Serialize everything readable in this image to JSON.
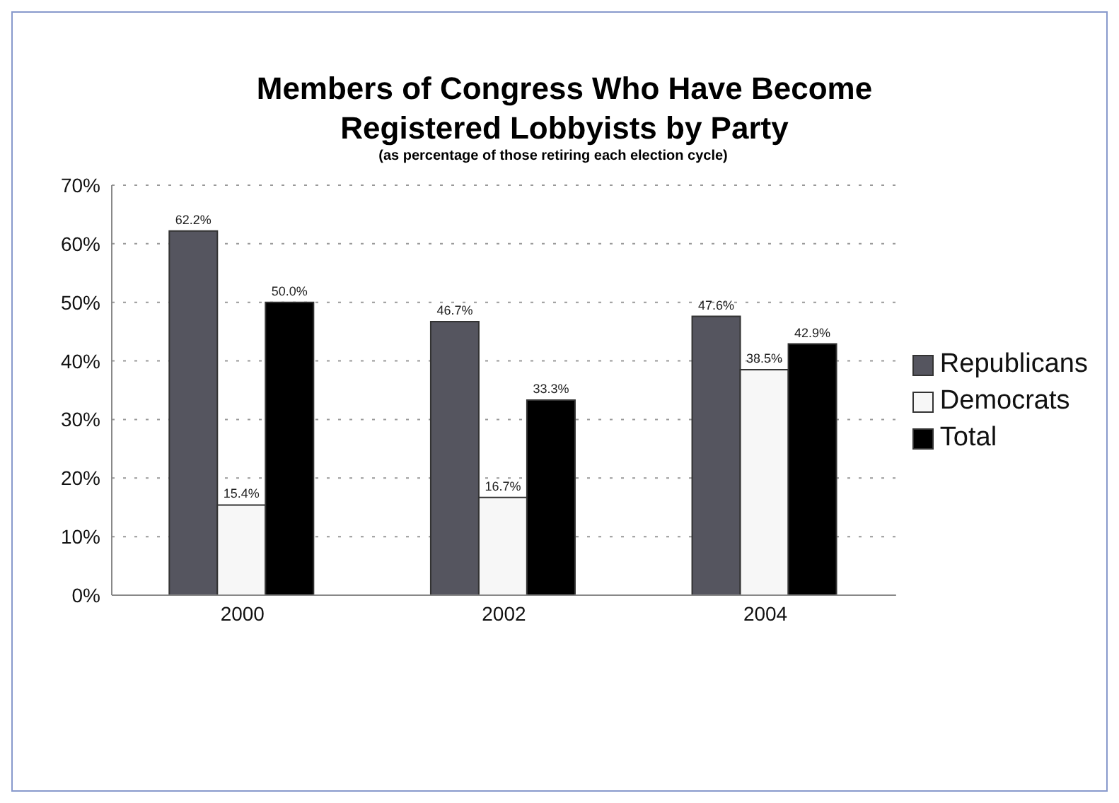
{
  "chart_data": {
    "type": "bar",
    "title": "Members of Congress Who Have Become Registered Lobbyists by Party",
    "subtitle": "(as percentage of those retiring each election cycle)",
    "categories": [
      "2000",
      "2002",
      "2004"
    ],
    "series": [
      {
        "name": "Republicans",
        "color": "#55555f",
        "values": [
          62.2,
          46.7,
          47.6
        ],
        "value_labels": [
          "62.2%",
          "46.7%",
          "47.6%"
        ]
      },
      {
        "name": "Democrats",
        "color": "#f7f7f7",
        "values": [
          15.4,
          16.7,
          38.5
        ],
        "value_labels": [
          "15.4%",
          "16.7%",
          "38.5%"
        ]
      },
      {
        "name": "Total",
        "color": "#000000",
        "values": [
          50.0,
          33.3,
          42.9
        ],
        "value_labels": [
          "50.0%",
          "33.3%",
          "42.9%"
        ]
      }
    ],
    "ylim": [
      0,
      70
    ],
    "yticks": [
      {
        "value": 0,
        "label": "0%"
      },
      {
        "value": 10,
        "label": "10%"
      },
      {
        "value": 20,
        "label": "20%"
      },
      {
        "value": 30,
        "label": "30%"
      },
      {
        "value": 40,
        "label": "40%"
      },
      {
        "value": 50,
        "label": "50%"
      },
      {
        "value": 60,
        "label": "60%"
      },
      {
        "value": 70,
        "label": "70%"
      }
    ],
    "grid": "y",
    "legend": "right"
  }
}
